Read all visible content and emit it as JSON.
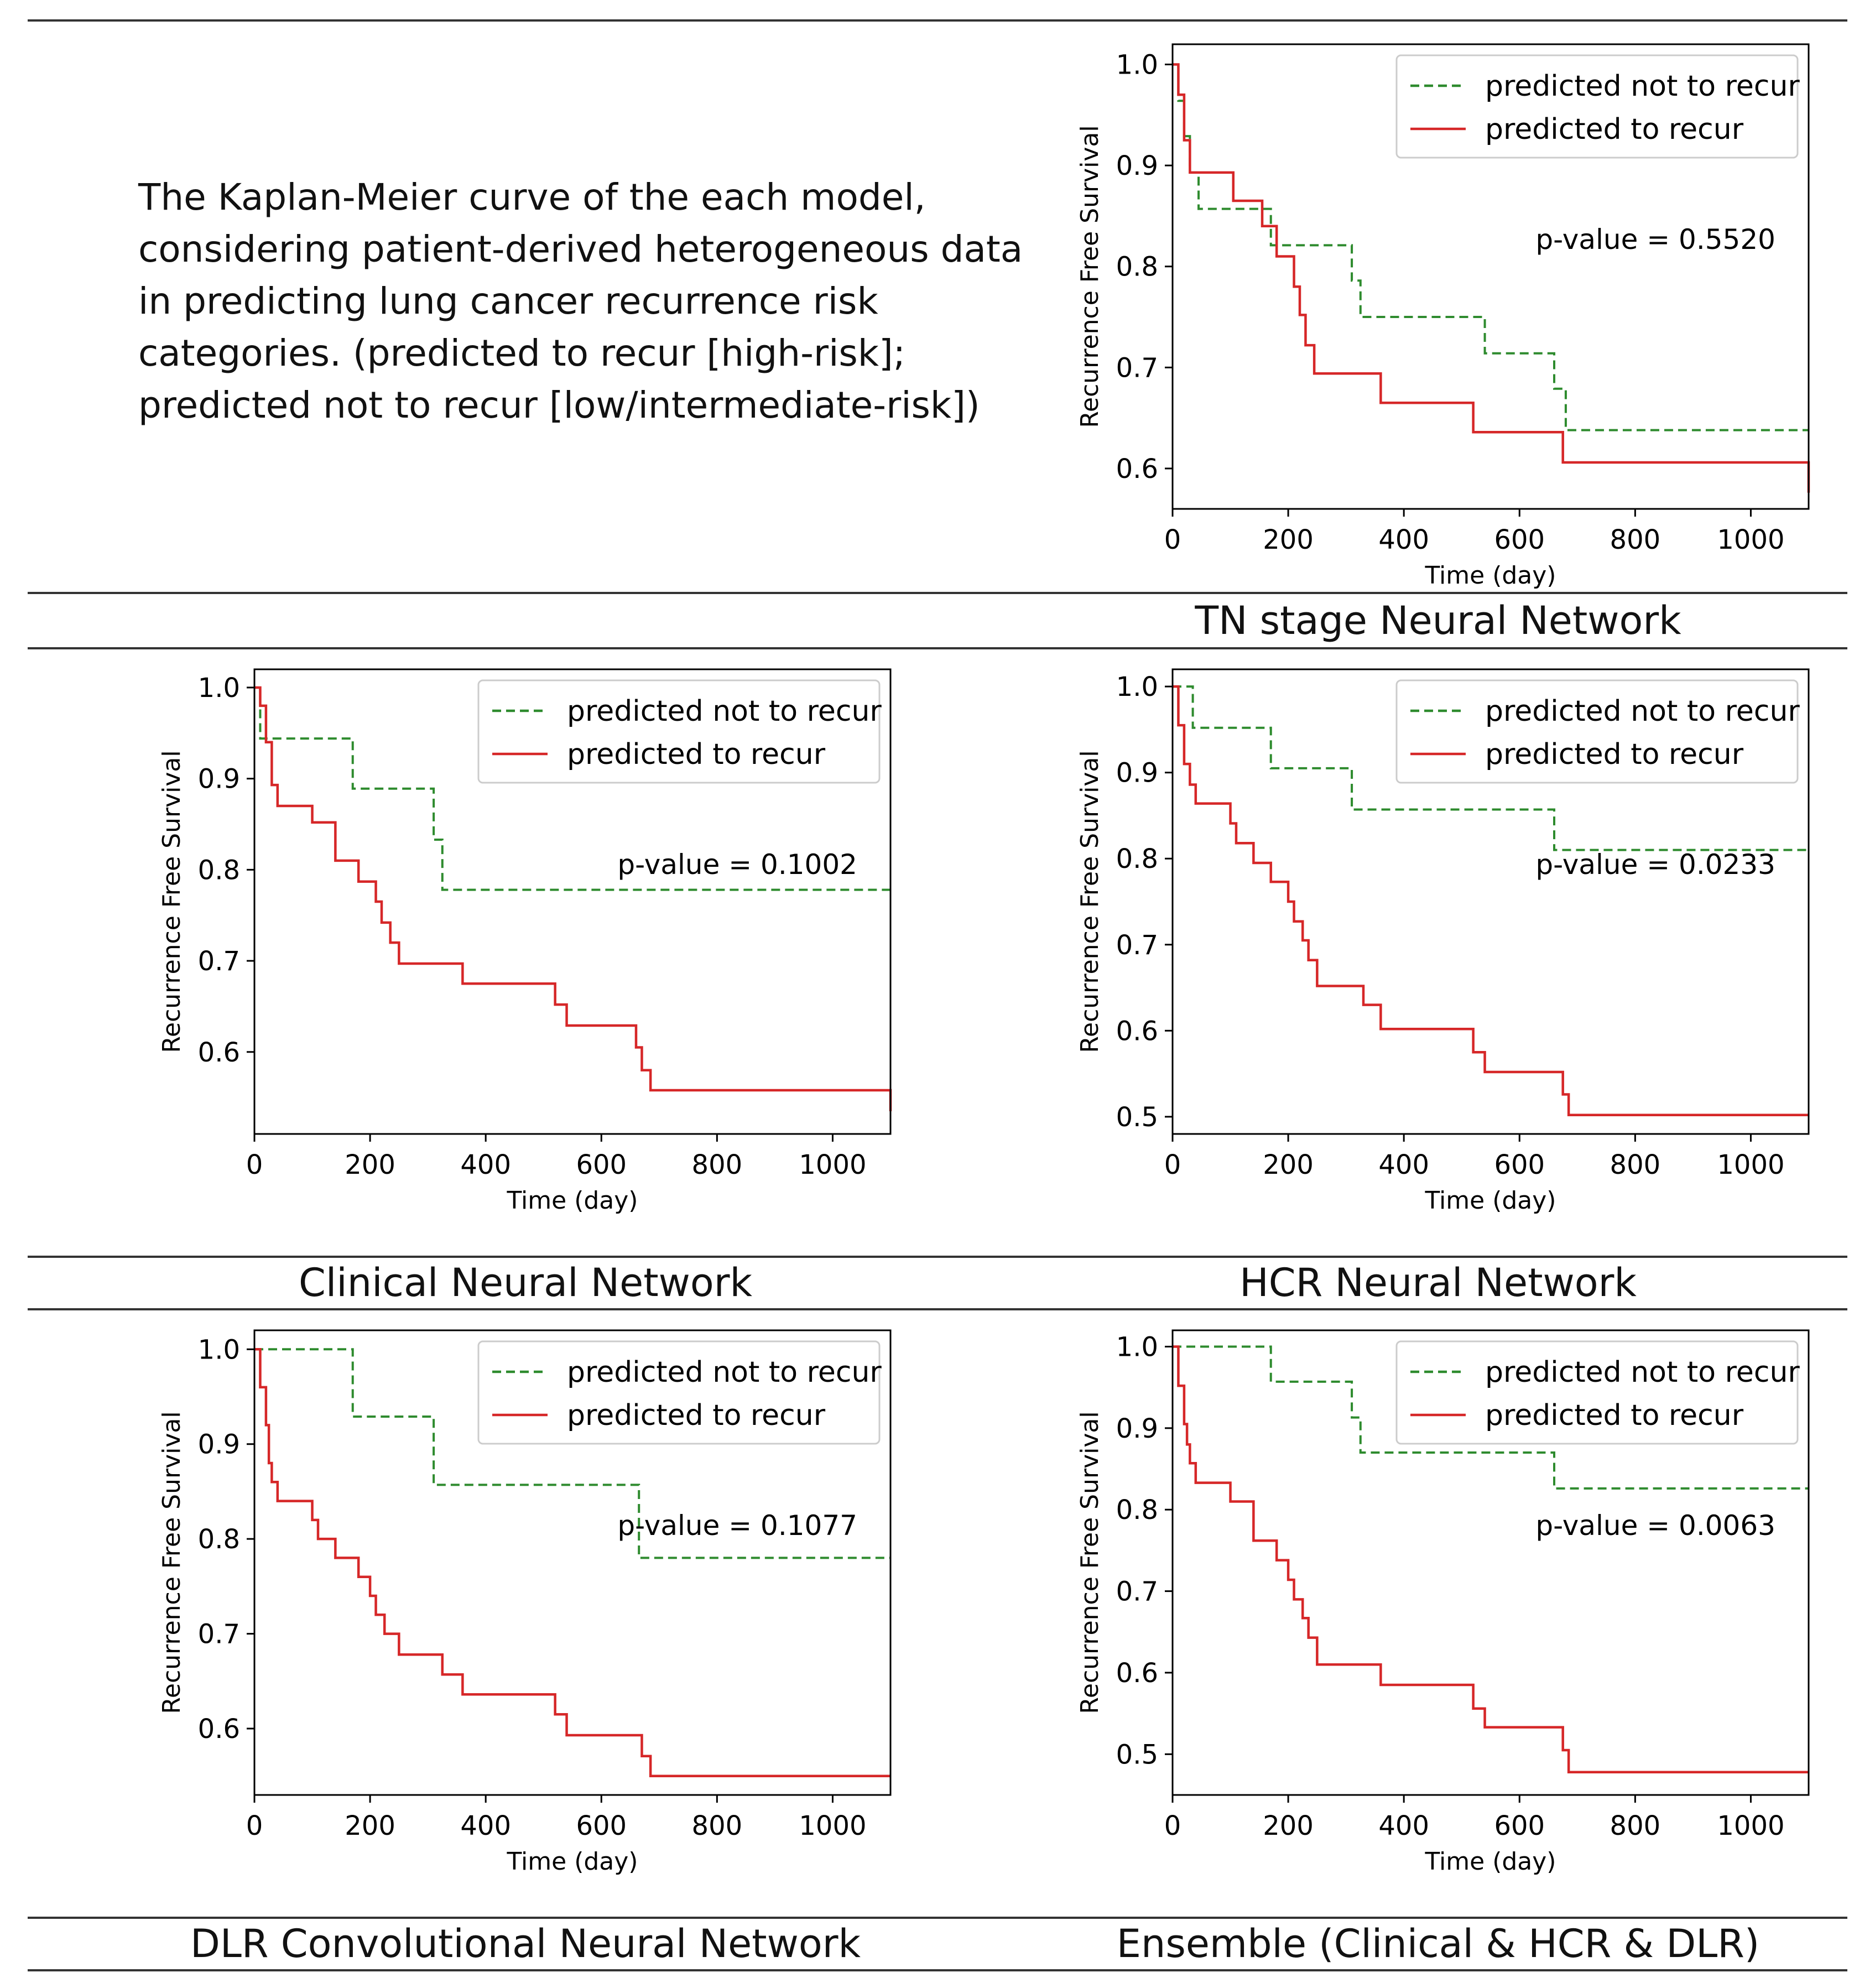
{
  "caption": "The Kaplan-Meier curve of the each model, considering patient-derived heterogeneous data in predicting lung cancer recurrence risk categories. (predicted to recur [high-risk]; predicted not to recur [low/intermediate-risk])",
  "colors": {
    "not_recur": "#2e8b2e",
    "recur": "#d62728",
    "rule": "#333333"
  },
  "chart_data": [
    {
      "type": "line",
      "title": "TN stage Neural Network",
      "xlabel": "Time (day)",
      "ylabel": "Recurrence Free Survival",
      "xlim": [
        0,
        1100
      ],
      "ylim": [
        0.56,
        1.02
      ],
      "xticks": [
        0,
        200,
        400,
        600,
        800,
        1000
      ],
      "yticks": [
        0.6,
        0.7,
        0.8,
        0.9,
        1.0
      ],
      "ytick_labels": [
        "0.6",
        "0.7",
        "0.8",
        "0.9",
        "1.0"
      ],
      "p_value": "p-value = 0.5520",
      "legend_position": "upper-right",
      "series": [
        {
          "name": "predicted not to recur",
          "style": "dashed",
          "color": "#2e8b2e",
          "x": [
            0,
            10,
            20,
            30,
            45,
            170,
            310,
            325,
            540,
            660,
            680,
            1100
          ],
          "y": [
            1.0,
            0.964,
            0.929,
            0.893,
            0.857,
            0.821,
            0.786,
            0.75,
            0.714,
            0.679,
            0.638,
            0.638
          ]
        },
        {
          "name": "predicted to recur",
          "style": "solid",
          "color": "#d62728",
          "x": [
            0,
            10,
            20,
            30,
            105,
            155,
            180,
            210,
            220,
            230,
            245,
            360,
            520,
            675,
            1100
          ],
          "y": [
            1.0,
            0.97,
            0.925,
            0.893,
            0.865,
            0.84,
            0.81,
            0.78,
            0.752,
            0.722,
            0.694,
            0.665,
            0.636,
            0.606,
            0.576
          ]
        }
      ]
    },
    {
      "type": "line",
      "title": "Clinical Neural Network",
      "xlabel": "Time (day)",
      "ylabel": "Recurrence Free Survival",
      "xlim": [
        0,
        1100
      ],
      "ylim": [
        0.51,
        1.02
      ],
      "xticks": [
        0,
        200,
        400,
        600,
        800,
        1000
      ],
      "yticks": [
        0.6,
        0.7,
        0.8,
        0.9,
        1.0
      ],
      "ytick_labels": [
        "0.6",
        "0.7",
        "0.8",
        "0.9",
        "1.0"
      ],
      "p_value": "p-value = 0.1002",
      "legend_position": "upper-right",
      "series": [
        {
          "name": "predicted not to recur",
          "style": "dashed",
          "color": "#2e8b2e",
          "x": [
            0,
            10,
            170,
            310,
            325,
            1100
          ],
          "y": [
            1.0,
            0.944,
            0.889,
            0.833,
            0.778,
            0.778
          ]
        },
        {
          "name": "predicted to recur",
          "style": "solid",
          "color": "#d62728",
          "x": [
            0,
            10,
            20,
            30,
            40,
            100,
            140,
            180,
            210,
            220,
            235,
            250,
            360,
            520,
            540,
            660,
            670,
            685,
            1100
          ],
          "y": [
            1.0,
            0.98,
            0.94,
            0.893,
            0.87,
            0.852,
            0.81,
            0.787,
            0.765,
            0.742,
            0.72,
            0.697,
            0.675,
            0.652,
            0.629,
            0.605,
            0.58,
            0.558,
            0.535
          ]
        }
      ]
    },
    {
      "type": "line",
      "title": "HCR Neural Network",
      "xlabel": "Time (day)",
      "ylabel": "Recurrence Free Survival",
      "xlim": [
        0,
        1100
      ],
      "ylim": [
        0.48,
        1.02
      ],
      "xticks": [
        0,
        200,
        400,
        600,
        800,
        1000
      ],
      "yticks": [
        0.5,
        0.6,
        0.7,
        0.8,
        0.9,
        1.0
      ],
      "ytick_labels": [
        "0.5",
        "0.6",
        "0.7",
        "0.8",
        "0.9",
        "1.0"
      ],
      "p_value": "p-value = 0.0233",
      "legend_position": "upper-right",
      "series": [
        {
          "name": "predicted not to recur",
          "style": "dashed",
          "color": "#2e8b2e",
          "x": [
            0,
            35,
            170,
            310,
            660,
            1100
          ],
          "y": [
            1.0,
            0.952,
            0.905,
            0.857,
            0.81,
            0.81
          ]
        },
        {
          "name": "predicted to recur",
          "style": "solid",
          "color": "#d62728",
          "x": [
            0,
            10,
            20,
            30,
            40,
            100,
            110,
            140,
            170,
            200,
            210,
            225,
            235,
            250,
            330,
            360,
            520,
            540,
            675,
            685,
            1100
          ],
          "y": [
            1.0,
            0.955,
            0.91,
            0.886,
            0.864,
            0.841,
            0.818,
            0.795,
            0.773,
            0.75,
            0.727,
            0.705,
            0.682,
            0.652,
            0.63,
            0.602,
            0.575,
            0.552,
            0.526,
            0.502,
            0.502
          ]
        }
      ]
    },
    {
      "type": "line",
      "title": "DLR Convolutional Neural Network",
      "xlabel": "Time (day)",
      "ylabel": "Recurrence Free Survival",
      "xlim": [
        0,
        1100
      ],
      "ylim": [
        0.53,
        1.02
      ],
      "xticks": [
        0,
        200,
        400,
        600,
        800,
        1000
      ],
      "yticks": [
        0.6,
        0.7,
        0.8,
        0.9,
        1.0
      ],
      "ytick_labels": [
        "0.6",
        "0.7",
        "0.8",
        "0.9",
        "1.0"
      ],
      "p_value": "p-value = 0.1077",
      "legend_position": "upper-right",
      "series": [
        {
          "name": "predicted not to recur",
          "style": "dashed",
          "color": "#2e8b2e",
          "x": [
            0,
            170,
            310,
            665,
            1100
          ],
          "y": [
            1.0,
            0.929,
            0.857,
            0.78,
            0.78
          ]
        },
        {
          "name": "predicted to recur",
          "style": "solid",
          "color": "#d62728",
          "x": [
            0,
            10,
            20,
            25,
            30,
            40,
            100,
            110,
            140,
            180,
            200,
            210,
            225,
            250,
            325,
            360,
            520,
            540,
            670,
            685,
            1100
          ],
          "y": [
            1.0,
            0.96,
            0.92,
            0.88,
            0.86,
            0.84,
            0.82,
            0.8,
            0.78,
            0.76,
            0.74,
            0.72,
            0.7,
            0.678,
            0.657,
            0.636,
            0.615,
            0.593,
            0.571,
            0.55,
            0.55
          ]
        }
      ]
    },
    {
      "type": "line",
      "title": "Ensemble (Clinical & HCR & DLR)",
      "xlabel": "Time (day)",
      "ylabel": "Recurrence Free Survival",
      "xlim": [
        0,
        1100
      ],
      "ylim": [
        0.45,
        1.02
      ],
      "xticks": [
        0,
        200,
        400,
        600,
        800,
        1000
      ],
      "yticks": [
        0.5,
        0.6,
        0.7,
        0.8,
        0.9,
        1.0
      ],
      "ytick_labels": [
        "0.5",
        "0.6",
        "0.7",
        "0.8",
        "0.9",
        "1.0"
      ],
      "p_value": "p-value = 0.0063",
      "legend_position": "upper-right",
      "series": [
        {
          "name": "predicted not to recur",
          "style": "dashed",
          "color": "#2e8b2e",
          "x": [
            0,
            170,
            310,
            325,
            660,
            1100
          ],
          "y": [
            1.0,
            0.957,
            0.913,
            0.87,
            0.826,
            0.826
          ]
        },
        {
          "name": "predicted to recur",
          "style": "solid",
          "color": "#d62728",
          "x": [
            0,
            10,
            20,
            25,
            30,
            40,
            100,
            140,
            180,
            200,
            210,
            225,
            235,
            250,
            360,
            520,
            540,
            675,
            685,
            1100
          ],
          "y": [
            1.0,
            0.952,
            0.905,
            0.88,
            0.857,
            0.833,
            0.81,
            0.762,
            0.738,
            0.714,
            0.69,
            0.667,
            0.643,
            0.61,
            0.585,
            0.556,
            0.533,
            0.505,
            0.478,
            0.478
          ]
        }
      ]
    }
  ]
}
